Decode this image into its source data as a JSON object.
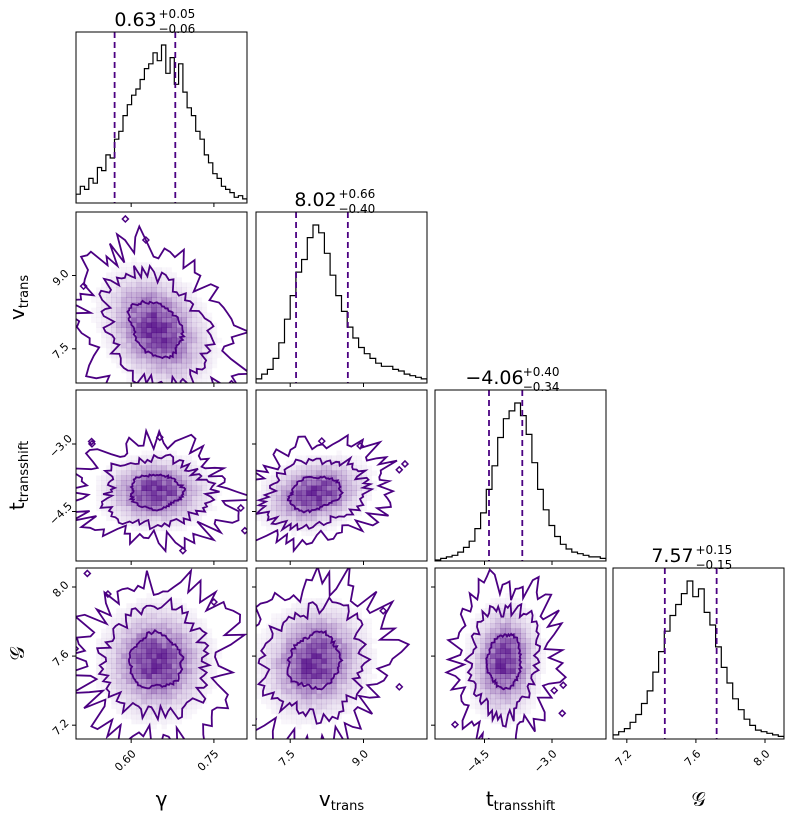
{
  "chart_data": {
    "type": "corner",
    "color": "#4b0082",
    "parameters": [
      {
        "id": "gamma",
        "label": "γ",
        "label_sub": "",
        "range": [
          0.5,
          0.81
        ],
        "ticks": [
          {
            "value": 0.6,
            "label": "0.60"
          },
          {
            "value": 0.75,
            "label": "0.75"
          }
        ],
        "median": 0.63,
        "err_plus": 0.05,
        "err_minus": 0.06,
        "title_main": "0.63",
        "title_plus": "+0.05",
        "title_minus": "−0.06",
        "quantiles": [
          0.57,
          0.68
        ],
        "hist": [
          0.05,
          0.1,
          0.08,
          0.15,
          0.12,
          0.22,
          0.2,
          0.3,
          0.28,
          0.4,
          0.45,
          0.55,
          0.62,
          0.68,
          0.72,
          0.78,
          0.85,
          0.88,
          0.95,
          0.9,
          1.0,
          0.82,
          0.92,
          0.75,
          0.88,
          0.7,
          0.6,
          0.55,
          0.45,
          0.4,
          0.3,
          0.25,
          0.18,
          0.15,
          0.1,
          0.08,
          0.06,
          0.03,
          0.04,
          0.02
        ]
      },
      {
        "id": "v_trans",
        "label": "v",
        "label_sub": "trans",
        "range": [
          6.8,
          10.3
        ],
        "ticks": [
          {
            "value": 7.5,
            "label": "7.5"
          },
          {
            "value": 9.0,
            "label": "9.0"
          }
        ],
        "median": 8.02,
        "err_plus": 0.66,
        "err_minus": 0.4,
        "title_main": "8.02",
        "title_plus": "+0.66",
        "title_minus": "−0.40",
        "quantiles": [
          7.62,
          8.68
        ],
        "hist": [
          0.02,
          0.05,
          0.08,
          0.15,
          0.25,
          0.4,
          0.55,
          0.7,
          0.78,
          0.92,
          1.0,
          0.95,
          0.82,
          0.68,
          0.55,
          0.45,
          0.35,
          0.28,
          0.22,
          0.18,
          0.15,
          0.12,
          0.1,
          0.1,
          0.08,
          0.07,
          0.05,
          0.04,
          0.03,
          0.02
        ]
      },
      {
        "id": "t_transshift",
        "label": "t",
        "label_sub": "transshift",
        "range": [
          -5.6,
          -1.8
        ],
        "ticks": [
          {
            "value": -4.5,
            "label": "−4.5"
          },
          {
            "value": -3.0,
            "label": "−3.0"
          }
        ],
        "median": -4.06,
        "err_plus": 0.4,
        "err_minus": 0.34,
        "title_main": "−4.06",
        "title_plus": "+0.40",
        "title_minus": "−0.34",
        "quantiles": [
          -4.4,
          -3.66
        ],
        "hist": [
          0.0,
          0.01,
          0.02,
          0.03,
          0.05,
          0.08,
          0.12,
          0.2,
          0.3,
          0.45,
          0.6,
          0.78,
          0.9,
          0.95,
          1.0,
          0.92,
          0.8,
          0.62,
          0.45,
          0.32,
          0.22,
          0.15,
          0.1,
          0.07,
          0.05,
          0.04,
          0.03,
          0.02,
          0.02,
          0.01
        ]
      },
      {
        "id": "G",
        "label": "𝒢",
        "label_sub": "",
        "range": [
          7.12,
          8.11
        ],
        "ticks": [
          {
            "value": 7.2,
            "label": "7.2"
          },
          {
            "value": 7.6,
            "label": "7.6"
          },
          {
            "value": 8.0,
            "label": "8.0"
          }
        ],
        "median": 7.57,
        "err_plus": 0.15,
        "err_minus": 0.15,
        "title_main": "7.57",
        "title_plus": "+0.15",
        "title_minus": "−0.15",
        "quantiles": [
          7.42,
          7.72
        ],
        "hist": [
          0.02,
          0.04,
          0.06,
          0.1,
          0.15,
          0.22,
          0.3,
          0.42,
          0.55,
          0.68,
          0.78,
          0.85,
          0.92,
          1.0,
          0.9,
          0.95,
          0.8,
          0.72,
          0.58,
          0.45,
          0.35,
          0.25,
          0.18,
          0.12,
          0.08,
          0.05,
          0.04,
          0.03,
          0.02,
          0.01
        ]
      }
    ],
    "pairs": [
      {
        "x": "gamma",
        "y": "v_trans",
        "center": [
          0.645,
          7.9
        ],
        "spread": [
          0.045,
          0.55
        ],
        "rho": -0.3
      },
      {
        "x": "gamma",
        "y": "t_transshift",
        "center": [
          0.645,
          -4.06
        ],
        "spread": [
          0.045,
          0.36
        ],
        "rho": 0.0
      },
      {
        "x": "v_trans",
        "y": "t_transshift",
        "center": [
          8.0,
          -4.1
        ],
        "spread": [
          0.5,
          0.36
        ],
        "rho": 0.25
      },
      {
        "x": "gamma",
        "y": "G",
        "center": [
          0.645,
          7.57
        ],
        "spread": [
          0.045,
          0.15
        ],
        "rho": 0.0
      },
      {
        "x": "v_trans",
        "y": "G",
        "center": [
          8.0,
          7.57
        ],
        "spread": [
          0.5,
          0.15
        ],
        "rho": 0.1
      },
      {
        "x": "t_transshift",
        "y": "G",
        "center": [
          -4.06,
          7.57
        ],
        "spread": [
          0.36,
          0.15
        ],
        "rho": 0.05
      }
    ],
    "contour_levels_sigma": [
      1.0,
      2.0,
      3.0
    ]
  }
}
